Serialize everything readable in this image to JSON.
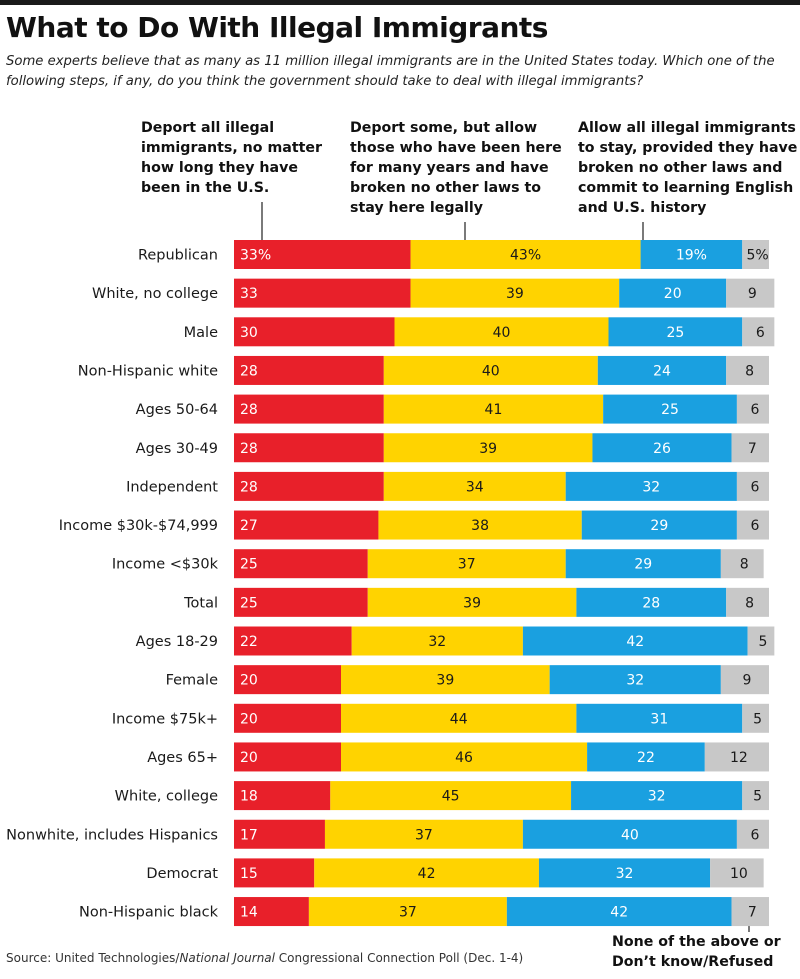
{
  "title": "What to Do With Illegal Immigrants",
  "subtitle": "Some experts believe that as many as 11 million illegal immigrants are in the United States today. Which one of the following steps, if any, do you think the government should take to deal with illegal immigrants?",
  "source": {
    "prefix": "Source: United Technologies/",
    "publication": "National Journal",
    "suffix": " Congressional Connection Poll (Dec. 1-4)"
  },
  "colors": {
    "deport_all": "#e8202a",
    "deport_some": "#ffd300",
    "allow_all": "#1aa0e0",
    "none": "#c8c8c8"
  },
  "chart_data": {
    "type": "bar",
    "orientation": "horizontal",
    "stacked": true,
    "unit": "%",
    "categories": [
      "Republican",
      "White, no college",
      "Male",
      "Non-Hispanic white",
      "Ages 50-64",
      "Ages 30-49",
      "Independent",
      "Income $30k-$74,999",
      "Income <$30k",
      "Total",
      "Ages 18-29",
      "Female",
      "Income $75k+",
      "Ages 65+",
      "White, college",
      "Nonwhite, includes Hispanics",
      "Democrat",
      "Non-Hispanic black"
    ],
    "series": [
      {
        "name": "Deport all illegal immigrants, no matter how long they have been in the U.S.",
        "color_key": "deport_all",
        "label_color": "#ffffff",
        "values": [
          33,
          33,
          30,
          28,
          28,
          28,
          28,
          27,
          25,
          25,
          22,
          20,
          20,
          20,
          18,
          17,
          15,
          14
        ]
      },
      {
        "name": "Deport some, but allow those who have been here for many years and have broken no other laws to stay here legally",
        "color_key": "deport_some",
        "label_color": "#1a1a1a",
        "values": [
          43,
          39,
          40,
          40,
          41,
          39,
          34,
          38,
          37,
          39,
          32,
          39,
          44,
          46,
          45,
          37,
          42,
          37
        ]
      },
      {
        "name": "Allow all illegal immigrants to stay, provided they have broken no other laws and commit to learning English and U.S. history",
        "color_key": "allow_all",
        "label_color": "#ffffff",
        "values": [
          19,
          20,
          25,
          24,
          25,
          26,
          32,
          29,
          29,
          28,
          42,
          32,
          31,
          22,
          32,
          40,
          32,
          42
        ]
      },
      {
        "name": "None of the above or Don’t know/Refused",
        "color_key": "none",
        "label_color": "#1a1a1a",
        "values": [
          5,
          9,
          6,
          8,
          6,
          7,
          6,
          6,
          8,
          8,
          5,
          9,
          5,
          12,
          5,
          6,
          10,
          7
        ]
      }
    ],
    "first_row_labels": [
      "33%",
      "43%",
      "19%",
      "5%"
    ],
    "legend_placement": "top, as column headers above the bars",
    "grid": false
  }
}
